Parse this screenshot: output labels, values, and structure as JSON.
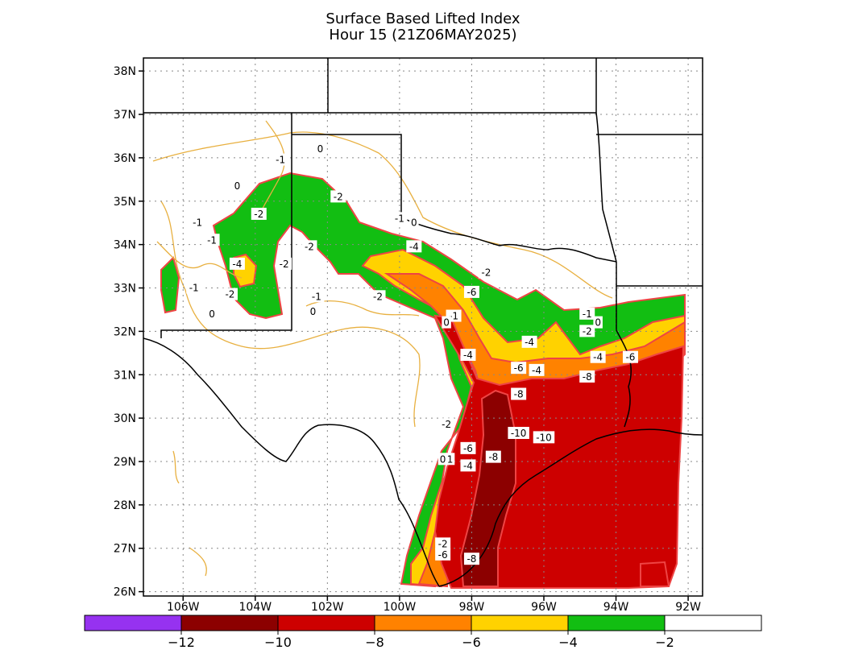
{
  "title": {
    "line1": "Surface Based Lifted Index",
    "line2": "Hour 15 (21Z06MAY2025)"
  },
  "map": {
    "lon_range": [
      -107.1,
      -91.6
    ],
    "lat_range": [
      25.9,
      38.3
    ],
    "grid": true,
    "lat_ticks": [
      {
        "value": 38,
        "label": "38N"
      },
      {
        "value": 37,
        "label": "37N"
      },
      {
        "value": 36,
        "label": "36N"
      },
      {
        "value": 35,
        "label": "35N"
      },
      {
        "value": 34,
        "label": "34N"
      },
      {
        "value": 33,
        "label": "33N"
      },
      {
        "value": 32,
        "label": "32N"
      },
      {
        "value": 31,
        "label": "31N"
      },
      {
        "value": 30,
        "label": "30N"
      },
      {
        "value": 29,
        "label": "29N"
      },
      {
        "value": 28,
        "label": "28N"
      },
      {
        "value": 27,
        "label": "27N"
      },
      {
        "value": 26,
        "label": "26N"
      }
    ],
    "lon_ticks": [
      {
        "value": -106,
        "label": "106W"
      },
      {
        "value": -104,
        "label": "104W"
      },
      {
        "value": -102,
        "label": "102W"
      },
      {
        "value": -100,
        "label": "100W"
      },
      {
        "value": -98,
        "label": "98W"
      },
      {
        "value": -96,
        "label": "96W"
      },
      {
        "value": -94,
        "label": "94W"
      },
      {
        "value": -92,
        "label": "92W"
      }
    ],
    "contour_labels": [
      {
        "text": "0",
        "lon": -102.2,
        "lat": 36.2
      },
      {
        "text": "-1",
        "lon": -103.3,
        "lat": 35.95
      },
      {
        "text": "0",
        "lon": -104.5,
        "lat": 35.35
      },
      {
        "text": "-2",
        "lon": -101.7,
        "lat": 35.1
      },
      {
        "text": "-2",
        "lon": -103.9,
        "lat": 34.7
      },
      {
        "text": "-1",
        "lon": -105.6,
        "lat": 34.5
      },
      {
        "text": "-1",
        "lon": -100.0,
        "lat": 34.6
      },
      {
        "text": "0",
        "lon": -99.6,
        "lat": 34.5
      },
      {
        "text": "-1",
        "lon": -105.2,
        "lat": 34.1
      },
      {
        "text": "-4",
        "lon": -99.6,
        "lat": 33.95
      },
      {
        "text": "-2",
        "lon": -102.5,
        "lat": 33.95
      },
      {
        "text": "-4",
        "lon": -104.5,
        "lat": 33.55
      },
      {
        "text": "-2",
        "lon": -103.2,
        "lat": 33.55
      },
      {
        "text": "-2",
        "lon": -97.6,
        "lat": 33.35
      },
      {
        "text": "-1",
        "lon": -105.7,
        "lat": 33.0
      },
      {
        "text": "-6",
        "lon": -98.0,
        "lat": 32.9
      },
      {
        "text": "-2",
        "lon": -104.7,
        "lat": 32.85
      },
      {
        "text": "-2",
        "lon": -100.6,
        "lat": 32.8
      },
      {
        "text": "-1",
        "lon": -102.3,
        "lat": 32.8
      },
      {
        "text": "0",
        "lon": -105.2,
        "lat": 32.4
      },
      {
        "text": "0",
        "lon": -102.4,
        "lat": 32.45
      },
      {
        "text": "-1",
        "lon": -98.5,
        "lat": 32.35
      },
      {
        "text": "0",
        "lon": -98.7,
        "lat": 32.2
      },
      {
        "text": "-1",
        "lon": -94.8,
        "lat": 32.4
      },
      {
        "text": "0",
        "lon": -94.5,
        "lat": 32.2
      },
      {
        "text": "-2",
        "lon": -94.8,
        "lat": 32.0
      },
      {
        "text": "-4",
        "lon": -96.4,
        "lat": 31.75
      },
      {
        "text": "-4",
        "lon": -98.1,
        "lat": 31.45
      },
      {
        "text": "-4",
        "lon": -94.5,
        "lat": 31.4
      },
      {
        "text": "-6",
        "lon": -93.6,
        "lat": 31.4
      },
      {
        "text": "-6",
        "lon": -96.7,
        "lat": 31.15
      },
      {
        "text": "-4",
        "lon": -96.2,
        "lat": 31.1
      },
      {
        "text": "-8",
        "lon": -94.8,
        "lat": 30.95
      },
      {
        "text": "-8",
        "lon": -96.7,
        "lat": 30.55
      },
      {
        "text": "-2",
        "lon": -98.7,
        "lat": 29.85
      },
      {
        "text": "-10",
        "lon": -96.7,
        "lat": 29.65
      },
      {
        "text": "-10",
        "lon": -96.0,
        "lat": 29.55
      },
      {
        "text": "-6",
        "lon": -98.1,
        "lat": 29.3
      },
      {
        "text": "-8",
        "lon": -97.4,
        "lat": 29.1
      },
      {
        "text": "0",
        "lon": -98.8,
        "lat": 29.05
      },
      {
        "text": "1",
        "lon": -98.6,
        "lat": 29.05
      },
      {
        "text": "-4",
        "lon": -98.1,
        "lat": 28.9
      },
      {
        "text": "-2",
        "lon": -98.8,
        "lat": 27.1
      },
      {
        "text": "-6",
        "lon": -98.8,
        "lat": 26.85
      },
      {
        "text": "-8",
        "lon": -98.0,
        "lat": 26.75
      }
    ]
  },
  "colorbar": {
    "bins": [
      {
        "color": "#9632f0"
      },
      {
        "color": "#8c0000"
      },
      {
        "color": "#cd0000"
      },
      {
        "color": "#ff8200"
      },
      {
        "color": "#ffd200"
      },
      {
        "color": "#12be12"
      },
      {
        "color": "#ffffff"
      }
    ],
    "labels": [
      "−12",
      "−10",
      "−8",
      "−6",
      "−4",
      "−2"
    ]
  }
}
